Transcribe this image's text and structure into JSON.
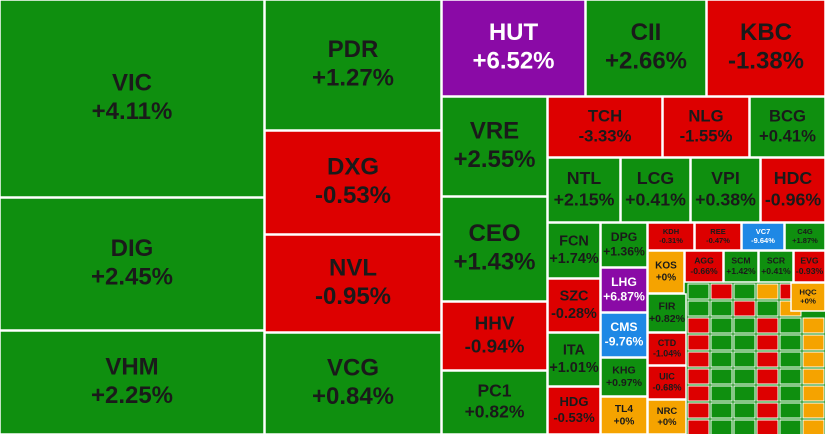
{
  "chart_data": {
    "type": "treemap",
    "categories": [
      "VIC",
      "DIG",
      "VHM",
      "PDR",
      "DXG",
      "NVL",
      "VCG",
      "HUT",
      "CII",
      "KBC",
      "VRE",
      "CEO",
      "HHV",
      "PC1",
      "TCH",
      "NLG",
      "BCG",
      "NTL",
      "LCG",
      "VPI",
      "HDC",
      "FCN",
      "SZC",
      "ITA",
      "HDG",
      "DPG",
      "LHG",
      "CMS",
      "KHG",
      "TL4",
      "KDH",
      "REE",
      "VC7",
      "C4G",
      "KOS",
      "AGG",
      "SCM",
      "SCR",
      "EVG",
      "FIR",
      "CTD",
      "UIC",
      "NRC",
      "HQC"
    ],
    "values": [
      4.11,
      2.45,
      2.25,
      1.27,
      -0.53,
      -0.95,
      0.84,
      6.52,
      2.66,
      -1.38,
      2.55,
      1.43,
      -0.94,
      0.82,
      -3.33,
      -1.55,
      0.41,
      2.15,
      0.41,
      0.38,
      -0.96,
      1.74,
      -0.28,
      1.01,
      -0.53,
      1.36,
      6.87,
      -9.76,
      0.97,
      0,
      -0.31,
      -0.47,
      -9.64,
      1.87,
      0,
      -0.66,
      1.42,
      0.41,
      -0.93,
      0.82,
      -1.04,
      -0.68,
      0,
      0
    ],
    "value_labels": [
      "+4.11%",
      "+2.45%",
      "+2.25%",
      "+1.27%",
      "-0.53%",
      "-0.95%",
      "+0.84%",
      "+6.52%",
      "+2.66%",
      "-1.38%",
      "+2.55%",
      "+1.43%",
      "-0.94%",
      "+0.82%",
      "-3.33%",
      "-1.55%",
      "+0.41%",
      "+2.15%",
      "+0.41%",
      "+0.38%",
      "-0.96%",
      "+1.74%",
      "-0.28%",
      "+1.01%",
      "-0.53%",
      "+1.36%",
      "+6.87%",
      "-9.76%",
      "+0.97%",
      "+0%",
      "-0.31%",
      "-0.47%",
      "-9.64%",
      "+1.87%",
      "+0%",
      "-0.66%",
      "+1.42%",
      "+0.41%",
      "-0.93%",
      "+0.82%",
      "-1.04%",
      "-0.68%",
      "+0%",
      "+0%"
    ],
    "colors": {
      "up": "#0f8f0f",
      "down": "#dd0000",
      "ceiling": "#8a0aa6",
      "floor": "#1e88e5",
      "flat": "#f5a300"
    }
  }
}
